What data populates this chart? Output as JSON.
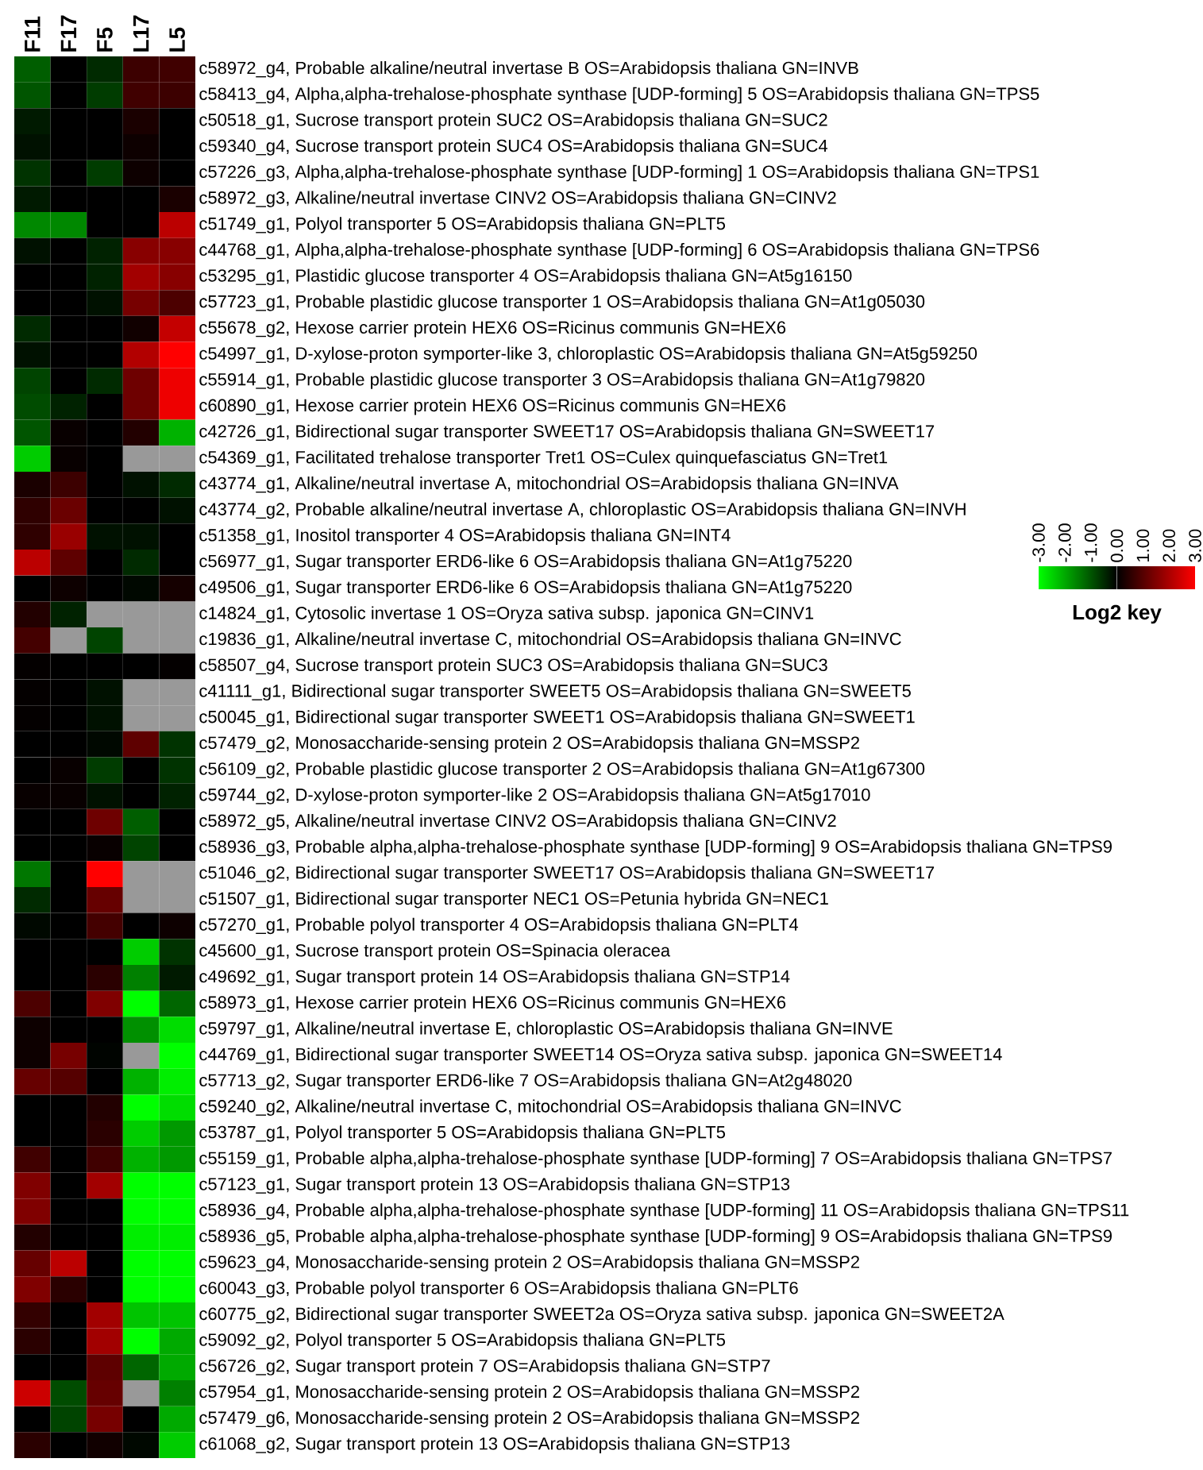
{
  "chart_data": {
    "type": "heatmap",
    "clabel": "Log2 key",
    "categories": [
      "F11",
      "F17",
      "F5",
      "L17",
      "L5"
    ],
    "y_categories": [
      "c58972_g4, Probable alkaline/neutral invertase B OS=Arabidopsis thaliana GN=INVB",
      "c58413_g4, Alpha,alpha-trehalose-phosphate synthase [UDP-forming] 5 OS=Arabidopsis thaliana GN=TPS5",
      "c50518_g1, Sucrose transport protein SUC2 OS=Arabidopsis thaliana GN=SUC2",
      "c59340_g4, Sucrose transport protein SUC4 OS=Arabidopsis thaliana GN=SUC4",
      "c57226_g3, Alpha,alpha-trehalose-phosphate synthase [UDP-forming] 1 OS=Arabidopsis thaliana GN=TPS1",
      "c58972_g3, Alkaline/neutral invertase CINV2 OS=Arabidopsis thaliana GN=CINV2",
      "c51749_g1, Polyol transporter 5 OS=Arabidopsis thaliana GN=PLT5",
      "c44768_g1, Alpha,alpha-trehalose-phosphate synthase [UDP-forming] 6 OS=Arabidopsis thaliana GN=TPS6",
      "c53295_g1, Plastidic glucose transporter 4 OS=Arabidopsis thaliana GN=At5g16150",
      "c57723_g1, Probable plastidic glucose transporter 1 OS=Arabidopsis thaliana GN=At1g05030",
      "c55678_g2, Hexose carrier protein HEX6 OS=Ricinus communis GN=HEX6",
      "c54997_g1, D-xylose-proton symporter-like 3, chloroplastic OS=Arabidopsis thaliana GN=At5g59250",
      "c55914_g1, Probable plastidic glucose transporter 3 OS=Arabidopsis thaliana GN=At1g79820",
      "c60890_g1, Hexose carrier protein HEX6 OS=Ricinus communis GN=HEX6",
      "c42726_g1, Bidirectional sugar transporter SWEET17 OS=Arabidopsis thaliana GN=SWEET17",
      "c54369_g1, Facilitated trehalose transporter Tret1 OS=Culex quinquefasciatus GN=Tret1",
      "c43774_g1, Alkaline/neutral invertase A, mitochondrial OS=Arabidopsis thaliana GN=INVA",
      "c43774_g2, Probable alkaline/neutral invertase A, chloroplastic OS=Arabidopsis thaliana GN=INVH",
      "c51358_g1, Inositol transporter 4 OS=Arabidopsis thaliana GN=INT4",
      "c56977_g1, Sugar transporter ERD6-like 6 OS=Arabidopsis thaliana GN=At1g75220",
      "c49506_g1, Sugar transporter ERD6-like 6 OS=Arabidopsis thaliana GN=At1g75220",
      "c14824_g1, Cytosolic invertase 1 OS=Oryza sativa subsp. japonica GN=CINV1",
      "c19836_g1, Alkaline/neutral invertase C, mitochondrial OS=Arabidopsis thaliana GN=INVC",
      "c58507_g4, Sucrose transport protein SUC3 OS=Arabidopsis thaliana GN=SUC3",
      "c41111_g1, Bidirectional sugar transporter SWEET5 OS=Arabidopsis thaliana GN=SWEET5",
      "c50045_g1, Bidirectional sugar transporter SWEET1 OS=Arabidopsis thaliana GN=SWEET1",
      "c57479_g2, Monosaccharide-sensing protein 2 OS=Arabidopsis thaliana GN=MSSP2",
      "c56109_g2, Probable plastidic glucose transporter 2 OS=Arabidopsis thaliana GN=At1g67300",
      "c59744_g2, D-xylose-proton symporter-like 2 OS=Arabidopsis thaliana GN=At5g17010",
      "c58972_g5, Alkaline/neutral invertase CINV2 OS=Arabidopsis thaliana GN=CINV2",
      "c58936_g3, Probable alpha,alpha-trehalose-phosphate synthase [UDP-forming] 9 OS=Arabidopsis thaliana GN=TPS9",
      "c51046_g2, Bidirectional sugar transporter SWEET17 OS=Arabidopsis thaliana GN=SWEET17",
      "c51507_g1, Bidirectional sugar transporter NEC1 OS=Petunia hybrida GN=NEC1",
      "c57270_g1, Probable polyol transporter 4 OS=Arabidopsis thaliana GN=PLT4",
      "c45600_g1, Sucrose transport protein OS=Spinacia oleracea",
      "c49692_g1, Sugar transport protein 14 OS=Arabidopsis thaliana GN=STP14",
      "c58973_g1, Hexose carrier protein HEX6 OS=Ricinus communis GN=HEX6",
      "c59797_g1, Alkaline/neutral invertase E, chloroplastic OS=Arabidopsis thaliana GN=INVE",
      "c44769_g1, Bidirectional sugar transporter SWEET14 OS=Oryza sativa subsp. japonica GN=SWEET14",
      "c57713_g2, Sugar transporter ERD6-like 7 OS=Arabidopsis thaliana GN=At2g48020",
      "c59240_g2, Alkaline/neutral invertase C, mitochondrial OS=Arabidopsis thaliana GN=INVC",
      "c53787_g1, Polyol transporter 5 OS=Arabidopsis thaliana GN=PLT5",
      "c55159_g1, Probable alpha,alpha-trehalose-phosphate synthase [UDP-forming] 7 OS=Arabidopsis thaliana GN=TPS7",
      "c57123_g1, Sugar transport protein 13 OS=Arabidopsis thaliana GN=STP13",
      "c58936_g4, Probable alpha,alpha-trehalose-phosphate synthase [UDP-forming] 11 OS=Arabidopsis thaliana GN=TPS11",
      "c58936_g5, Probable alpha,alpha-trehalose-phosphate synthase [UDP-forming] 9 OS=Arabidopsis thaliana GN=TPS9",
      "c59623_g4, Monosaccharide-sensing protein 2 OS=Arabidopsis thaliana GN=MSSP2",
      "c60043_g3, Probable polyol transporter 6 OS=Arabidopsis thaliana GN=PLT6",
      "c60775_g2, Bidirectional sugar transporter SWEET2a OS=Oryza sativa subsp. japonica GN=SWEET2A",
      "c59092_g2, Polyol transporter 5 OS=Arabidopsis thaliana GN=PLT5",
      "c56726_g2, Sugar transport protein 7 OS=Arabidopsis thaliana GN=STP7",
      "c57954_g1, Monosaccharide-sensing protein 2 OS=Arabidopsis thaliana GN=MSSP2",
      "c57479_g6, Monosaccharide-sensing protein 2 OS=Arabidopsis thaliana GN=MSSP2",
      "c61068_g2, Sugar transport protein 13 OS=Arabidopsis thaliana GN=STP13"
    ],
    "cells": [
      [
        -1.1,
        0,
        -0.5,
        0.7,
        0.75
      ],
      [
        -1.0,
        0,
        -0.7,
        0.75,
        0.7
      ],
      [
        -0.3,
        0,
        0,
        0.3,
        0
      ],
      [
        -0.2,
        0,
        0,
        0.15,
        0
      ],
      [
        -0.6,
        0,
        -0.7,
        0.15,
        0
      ],
      [
        -0.3,
        0,
        0,
        0,
        0.3
      ],
      [
        -1.6,
        -1.6,
        0,
        0,
        2.2
      ],
      [
        -0.2,
        0,
        -0.4,
        1.6,
        1.6
      ],
      [
        0,
        0,
        -0.4,
        1.9,
        1.6
      ],
      [
        0,
        0,
        -0.2,
        1.4,
        0.9
      ],
      [
        -0.5,
        0,
        0,
        0.2,
        2.3
      ],
      [
        -0.2,
        0,
        0,
        2.1,
        3.0
      ],
      [
        -0.8,
        0,
        -0.5,
        1.3,
        2.8
      ],
      [
        -0.9,
        -0.4,
        0,
        1.3,
        2.8
      ],
      [
        -1.0,
        0.1,
        0,
        0.4,
        -2.1
      ],
      [
        -2.4,
        0.1,
        0,
        null,
        null
      ],
      [
        0.3,
        0.7,
        0,
        -0.2,
        -0.5
      ],
      [
        0.55,
        1.25,
        0,
        0,
        -0.2
      ],
      [
        0.55,
        1.8,
        -0.2,
        -0.2,
        0
      ],
      [
        2.2,
        1.1,
        0,
        -0.5,
        0
      ],
      [
        0,
        0.15,
        0,
        -0.1,
        0.25
      ],
      [
        0.4,
        -0.4,
        null,
        null,
        null
      ],
      [
        0.8,
        null,
        -0.8,
        null,
        null
      ],
      [
        0.05,
        0,
        0,
        0,
        0.05
      ],
      [
        0.05,
        0,
        -0.2,
        null,
        null
      ],
      [
        0.05,
        0,
        -0.2,
        null,
        null
      ],
      [
        0,
        0,
        -0.1,
        1.1,
        -0.6
      ],
      [
        0,
        0.1,
        -0.7,
        0,
        -0.6
      ],
      [
        0.1,
        0.1,
        -0.2,
        0,
        -0.4
      ],
      [
        0,
        0,
        1.3,
        -1.1,
        0
      ],
      [
        0,
        0,
        0.1,
        -0.8,
        0
      ],
      [
        -1.4,
        0,
        3.0,
        null,
        null
      ],
      [
        -0.5,
        0,
        1.2,
        null,
        null
      ],
      [
        -0.1,
        0,
        0.8,
        0,
        0.15
      ],
      [
        0,
        0,
        0,
        -2.4,
        -0.6
      ],
      [
        0,
        0,
        0.5,
        -1.5,
        -0.3
      ],
      [
        0.9,
        0,
        1.5,
        -3.0,
        -1.2
      ],
      [
        0.15,
        0,
        0,
        -1.7,
        -2.6
      ],
      [
        0.15,
        1.4,
        -0.05,
        null,
        -3.0
      ],
      [
        1.2,
        1.0,
        0,
        -2.1,
        -2.8
      ],
      [
        0,
        0,
        0.4,
        -3.0,
        -2.6
      ],
      [
        0,
        0,
        0.5,
        -2.4,
        -1.8
      ],
      [
        0.75,
        0,
        0.75,
        -2.1,
        -1.8
      ],
      [
        1.5,
        0,
        1.9,
        -3.0,
        -3.0
      ],
      [
        1.5,
        0,
        0,
        -3.0,
        -3.0
      ],
      [
        0.4,
        0,
        0,
        -2.8,
        -2.8
      ],
      [
        1.2,
        2.2,
        0,
        -3.0,
        -3.0
      ],
      [
        1.5,
        0.5,
        0,
        -3.0,
        -3.0
      ],
      [
        0.6,
        0,
        1.9,
        -2.3,
        -2.3
      ],
      [
        0.5,
        0,
        1.9,
        -3.0,
        -2.0
      ],
      [
        0,
        0,
        1.1,
        -1.2,
        -2.0
      ],
      [
        2.4,
        -0.9,
        1.2,
        null,
        -1.5
      ],
      [
        0,
        -0.8,
        1.4,
        0,
        -2.0
      ],
      [
        0.5,
        0,
        0.2,
        -0.1,
        -2.4
      ]
    ],
    "clim": [
      -3,
      3
    ],
    "cticks": [
      {
        "value": -3,
        "label": "-3.00"
      },
      {
        "value": -2,
        "label": "-2.00"
      },
      {
        "value": -1,
        "label": "-1.00"
      },
      {
        "value": 0,
        "label": "0.00"
      },
      {
        "value": 1,
        "label": "1.00"
      },
      {
        "value": 2,
        "label": "2.00"
      },
      {
        "value": 3,
        "label": "3.00"
      }
    ]
  }
}
